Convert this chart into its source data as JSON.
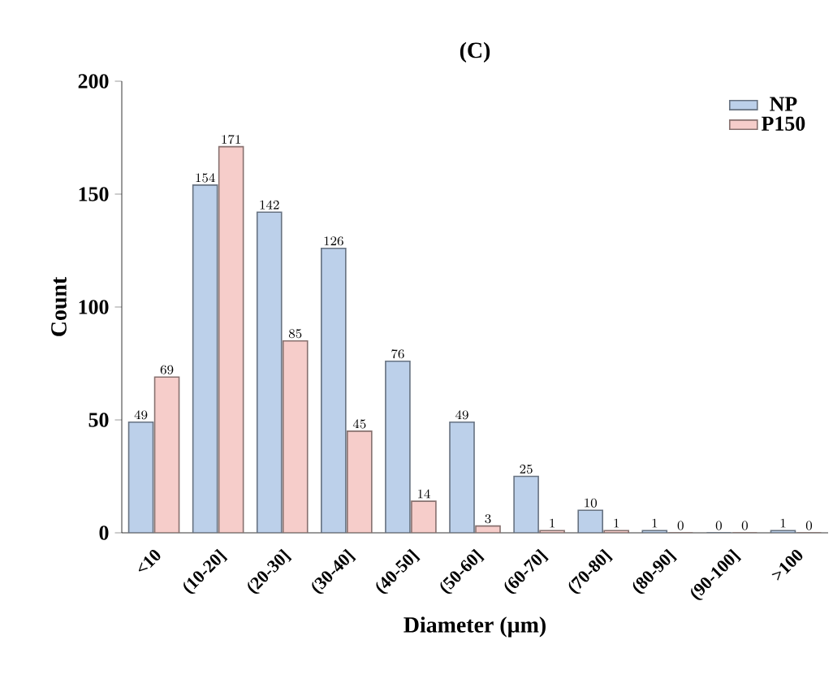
{
  "chart_data": {
    "type": "bar",
    "title": "(C)",
    "xlabel": "Diameter (µm)",
    "ylabel": "Count",
    "categories": [
      "<10",
      "(10-20]",
      "(20-30]",
      "(30-40]",
      "(40-50]",
      "(50-60]",
      "(60-70]",
      "(70-80]",
      "(80-90]",
      "(90-100]",
      ">100"
    ],
    "series": [
      {
        "name": "NP",
        "color": "#bcd0ea",
        "values": [
          49,
          154,
          142,
          126,
          76,
          49,
          25,
          10,
          1,
          0,
          1
        ]
      },
      {
        "name": "P150",
        "color": "#f6cdca",
        "values": [
          69,
          171,
          85,
          45,
          14,
          3,
          1,
          1,
          0,
          0,
          0
        ]
      }
    ],
    "ylim": [
      0,
      200
    ],
    "yticks": [
      0,
      50,
      100,
      150,
      200
    ],
    "data_labels": true,
    "legend": "top right",
    "grid": false
  }
}
